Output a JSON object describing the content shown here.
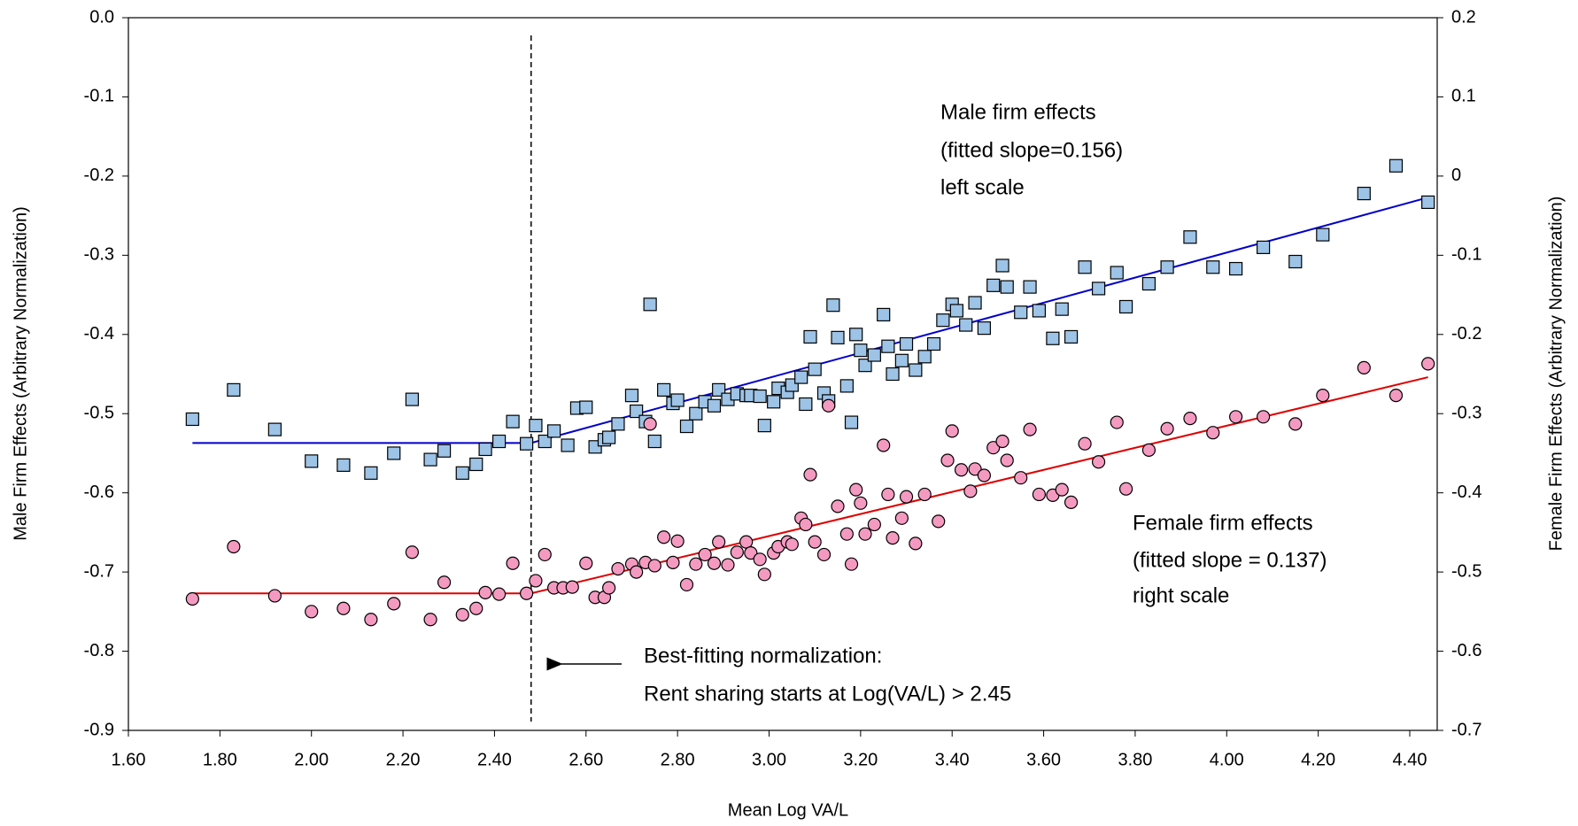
{
  "chart_data": {
    "type": "scatter",
    "x_label": "Mean Log VA/L",
    "y_label": "Male Firm Effects (Arbitrary Normalization)",
    "y2_label": "Female Firm Effects (Arbitrary Normalization)",
    "xlim": [
      1.6,
      4.46
    ],
    "xticks": [
      {
        "value": 1.6,
        "label": "1.60"
      },
      {
        "value": 1.8,
        "label": "1.80"
      },
      {
        "value": 2.0,
        "label": "2.00"
      },
      {
        "value": 2.2,
        "label": "2.20"
      },
      {
        "value": 2.4,
        "label": "2.40"
      },
      {
        "value": 2.6,
        "label": "2.60"
      },
      {
        "value": 2.8,
        "label": "2.80"
      },
      {
        "value": 3.0,
        "label": "3.00"
      },
      {
        "value": 3.2,
        "label": "3.20"
      },
      {
        "value": 3.4,
        "label": "3.40"
      },
      {
        "value": 3.6,
        "label": "3.60"
      },
      {
        "value": 3.8,
        "label": "3.80"
      },
      {
        "value": 4.0,
        "label": "4.00"
      },
      {
        "value": 4.2,
        "label": "4.20"
      },
      {
        "value": 4.4,
        "label": "4.40"
      }
    ],
    "ylim": [
      -0.9,
      0
    ],
    "yticks": [
      {
        "value": 0,
        "label": "0.0"
      },
      -0.1,
      -0.2,
      -0.3,
      -0.4,
      -0.5,
      -0.6,
      -0.7,
      -0.8,
      -0.9
    ],
    "y2lim": [
      -0.7,
      0.2
    ],
    "y2ticks": [
      0.2,
      0.1,
      0,
      -0.1,
      -0.2,
      -0.3,
      -0.4,
      -0.5,
      -0.6,
      -0.7
    ],
    "series": [
      {
        "marker": "square",
        "color": "#9dc3e6",
        "axis": "y",
        "x": [
          1.74,
          1.83,
          1.92,
          2.0,
          2.07,
          2.13,
          2.18,
          2.22,
          2.26,
          2.29,
          2.33,
          2.36,
          2.38,
          2.41,
          2.44,
          2.47,
          2.49,
          2.51,
          2.53,
          2.56,
          2.58,
          2.6,
          2.62,
          2.64,
          2.65,
          2.67,
          2.7,
          2.71,
          2.73,
          2.74,
          2.75,
          2.77,
          2.79,
          2.8,
          2.82,
          2.84,
          2.86,
          2.88,
          2.89,
          2.91,
          2.93,
          2.95,
          2.96,
          2.98,
          2.99,
          3.01,
          3.02,
          3.04,
          3.05,
          3.07,
          3.08,
          3.09,
          3.1,
          3.12,
          3.13,
          3.14,
          3.15,
          3.17,
          3.18,
          3.19,
          3.2,
          3.21,
          3.23,
          3.25,
          3.26,
          3.27,
          3.29,
          3.3,
          3.32,
          3.34,
          3.36,
          3.38,
          3.4,
          3.41,
          3.43,
          3.45,
          3.47,
          3.49,
          3.51,
          3.52,
          3.55,
          3.57,
          3.59,
          3.62,
          3.64,
          3.66,
          3.69,
          3.72,
          3.76,
          3.78,
          3.83,
          3.87,
          3.92,
          3.97,
          4.02,
          4.08,
          4.15,
          4.21,
          4.3,
          4.37,
          4.44
        ],
        "values": [
          -0.507,
          -0.47,
          -0.52,
          -0.56,
          -0.565,
          -0.575,
          -0.55,
          -0.482,
          -0.558,
          -0.547,
          -0.575,
          -0.564,
          -0.545,
          -0.535,
          -0.51,
          -0.538,
          -0.515,
          -0.535,
          -0.522,
          -0.54,
          -0.493,
          -0.492,
          -0.542,
          -0.533,
          -0.53,
          -0.513,
          -0.477,
          -0.497,
          -0.51,
          -0.362,
          -0.535,
          -0.47,
          -0.487,
          -0.483,
          -0.516,
          -0.5,
          -0.485,
          -0.49,
          -0.47,
          -0.482,
          -0.475,
          -0.477,
          -0.477,
          -0.478,
          -0.515,
          -0.485,
          -0.468,
          -0.473,
          -0.464,
          -0.454,
          -0.488,
          -0.403,
          -0.444,
          -0.474,
          -0.484,
          -0.363,
          -0.404,
          -0.465,
          -0.511,
          -0.4,
          -0.42,
          -0.439,
          -0.426,
          -0.375,
          -0.415,
          -0.45,
          -0.433,
          -0.412,
          -0.445,
          -0.428,
          -0.412,
          -0.382,
          -0.362,
          -0.37,
          -0.388,
          -0.36,
          -0.392,
          -0.338,
          -0.313,
          -0.34,
          -0.372,
          -0.34,
          -0.37,
          -0.405,
          -0.368,
          -0.403,
          -0.315,
          -0.342,
          -0.322,
          -0.365,
          -0.336,
          -0.315,
          -0.277,
          -0.315,
          -0.317,
          -0.29,
          -0.308,
          -0.274,
          -0.222,
          -0.187,
          -0.233
        ]
      },
      {
        "marker": "circle",
        "color": "#f49ac1",
        "axis": "y2",
        "x": [
          1.74,
          1.83,
          1.92,
          2.0,
          2.07,
          2.13,
          2.18,
          2.22,
          2.26,
          2.29,
          2.33,
          2.36,
          2.38,
          2.41,
          2.44,
          2.47,
          2.49,
          2.51,
          2.53,
          2.55,
          2.57,
          2.6,
          2.62,
          2.64,
          2.65,
          2.67,
          2.7,
          2.71,
          2.73,
          2.74,
          2.75,
          2.77,
          2.79,
          2.8,
          2.82,
          2.84,
          2.86,
          2.88,
          2.89,
          2.91,
          2.93,
          2.95,
          2.96,
          2.98,
          2.99,
          3.01,
          3.02,
          3.04,
          3.05,
          3.07,
          3.08,
          3.09,
          3.1,
          3.12,
          3.13,
          3.15,
          3.17,
          3.18,
          3.19,
          3.2,
          3.21,
          3.23,
          3.25,
          3.26,
          3.27,
          3.29,
          3.3,
          3.32,
          3.34,
          3.37,
          3.39,
          3.4,
          3.42,
          3.44,
          3.45,
          3.47,
          3.49,
          3.51,
          3.52,
          3.55,
          3.57,
          3.59,
          3.62,
          3.64,
          3.66,
          3.69,
          3.72,
          3.76,
          3.78,
          3.83,
          3.87,
          3.92,
          3.97,
          4.02,
          4.08,
          4.15,
          4.21,
          4.3,
          4.37,
          4.44
        ],
        "values": [
          -0.534,
          -0.468,
          -0.53,
          -0.55,
          -0.546,
          -0.56,
          -0.54,
          -0.475,
          -0.56,
          -0.513,
          -0.554,
          -0.546,
          -0.526,
          -0.528,
          -0.489,
          -0.527,
          -0.511,
          -0.478,
          -0.52,
          -0.52,
          -0.519,
          -0.489,
          -0.532,
          -0.532,
          -0.52,
          -0.496,
          -0.49,
          -0.5,
          -0.488,
          -0.313,
          -0.492,
          -0.456,
          -0.488,
          -0.461,
          -0.516,
          -0.49,
          -0.478,
          -0.489,
          -0.462,
          -0.491,
          -0.475,
          -0.462,
          -0.476,
          -0.484,
          -0.503,
          -0.476,
          -0.468,
          -0.462,
          -0.465,
          -0.432,
          -0.44,
          -0.377,
          -0.462,
          -0.478,
          -0.29,
          -0.417,
          -0.452,
          -0.49,
          -0.396,
          -0.413,
          -0.452,
          -0.44,
          -0.34,
          -0.402,
          -0.457,
          -0.432,
          -0.405,
          -0.464,
          -0.402,
          -0.436,
          -0.359,
          -0.322,
          -0.371,
          -0.398,
          -0.37,
          -0.378,
          -0.343,
          -0.335,
          -0.359,
          -0.381,
          -0.32,
          -0.402,
          -0.403,
          -0.396,
          -0.412,
          -0.338,
          -0.361,
          -0.311,
          -0.395,
          -0.346,
          -0.319,
          -0.306,
          -0.324,
          -0.304,
          -0.304,
          -0.313,
          -0.277,
          -0.242,
          -0.277,
          -0.237
        ]
      }
    ],
    "fits": [
      {
        "color": "#0000cc",
        "axis": "y",
        "x": [
          1.74,
          2.48,
          4.44
        ],
        "values": [
          -0.537,
          -0.537,
          -0.227
        ]
      },
      {
        "color": "#e00000",
        "axis": "y2",
        "x": [
          1.74,
          2.48,
          4.44
        ],
        "values": [
          -0.527,
          -0.527,
          -0.254
        ]
      }
    ],
    "reference_line_x": 2.48,
    "annotations": {
      "male": [
        "Male firm effects",
        "(fitted slope=0.156)",
        "left scale"
      ],
      "female": [
        "Female firm effects",
        "(fitted slope = 0.137)",
        "right scale"
      ],
      "normalization": [
        "Best-fitting normalization:",
        "Rent sharing starts at Log(VA/L) > 2.45"
      ]
    }
  }
}
